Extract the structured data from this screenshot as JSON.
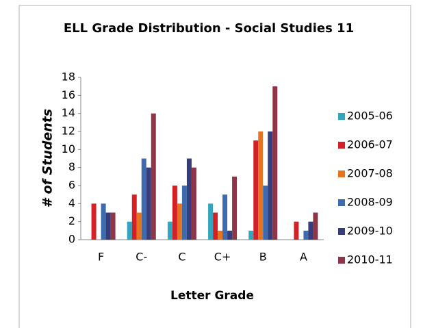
{
  "chart_data": {
    "type": "bar",
    "title": "ELL Grade Distribution - Social Studies 11",
    "x_label": "Letter Grade",
    "y_label": "# of Students",
    "categories": [
      "F",
      "C-",
      "C",
      "C+",
      "B",
      "A"
    ],
    "series": [
      {
        "name": "2005-06",
        "color": "#31a6bd",
        "values": [
          0,
          2,
          2,
          4,
          1,
          0
        ]
      },
      {
        "name": "2006-07",
        "color": "#d42027",
        "values": [
          4,
          5,
          6,
          3,
          11,
          2
        ]
      },
      {
        "name": "2007-08",
        "color": "#e8731f",
        "values": [
          0,
          3,
          4,
          1,
          12,
          0
        ]
      },
      {
        "name": "2008-09",
        "color": "#3d6bad",
        "values": [
          4,
          9,
          6,
          5,
          6,
          1
        ]
      },
      {
        "name": "2009-10",
        "color": "#363d7a",
        "values": [
          3,
          8,
          9,
          1,
          12,
          2
        ]
      },
      {
        "name": "2010-11",
        "color": "#8e3647",
        "values": [
          3,
          14,
          8,
          7,
          17,
          3
        ]
      }
    ],
    "ylim": [
      0,
      18
    ],
    "yticks": [
      0,
      2,
      4,
      6,
      8,
      10,
      12,
      14,
      16,
      18
    ],
    "legend": "right"
  }
}
